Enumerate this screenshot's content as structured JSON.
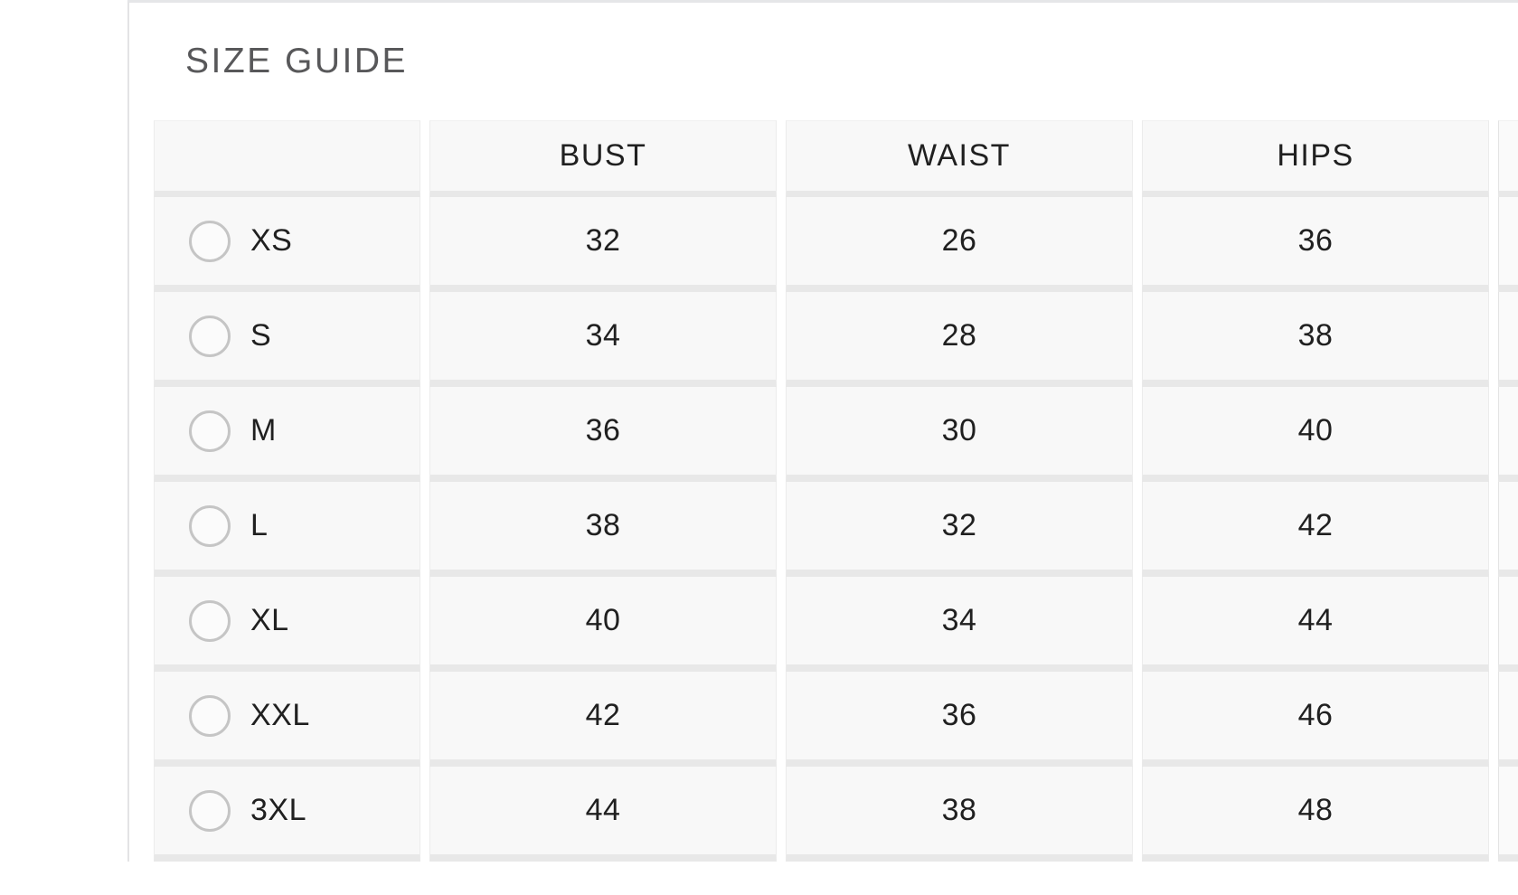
{
  "size_guide": {
    "title": "SIZE GUIDE",
    "columns": {
      "size": "",
      "bust": "BUST",
      "waist": "WAIST",
      "hips": "HIPS"
    },
    "sizes": [
      {
        "label": "XS",
        "bust": "32",
        "waist": "26",
        "hips": "36"
      },
      {
        "label": "S",
        "bust": "34",
        "waist": "28",
        "hips": "38"
      },
      {
        "label": "M",
        "bust": "36",
        "waist": "30",
        "hips": "40"
      },
      {
        "label": "L",
        "bust": "38",
        "waist": "32",
        "hips": "42"
      },
      {
        "label": "XL",
        "bust": "40",
        "waist": "34",
        "hips": "44"
      },
      {
        "label": "XXL",
        "bust": "42",
        "waist": "36",
        "hips": "46"
      },
      {
        "label": "3XL",
        "bust": "44",
        "waist": "38",
        "hips": "48"
      }
    ],
    "colors": {
      "cell_background": "#f8f8f8",
      "row_divider": "#e8e8e8",
      "panel_border": "#e5e6e8",
      "radio_border": "#c5c5c5",
      "title_text": "#58585a",
      "body_text": "#202020"
    }
  }
}
